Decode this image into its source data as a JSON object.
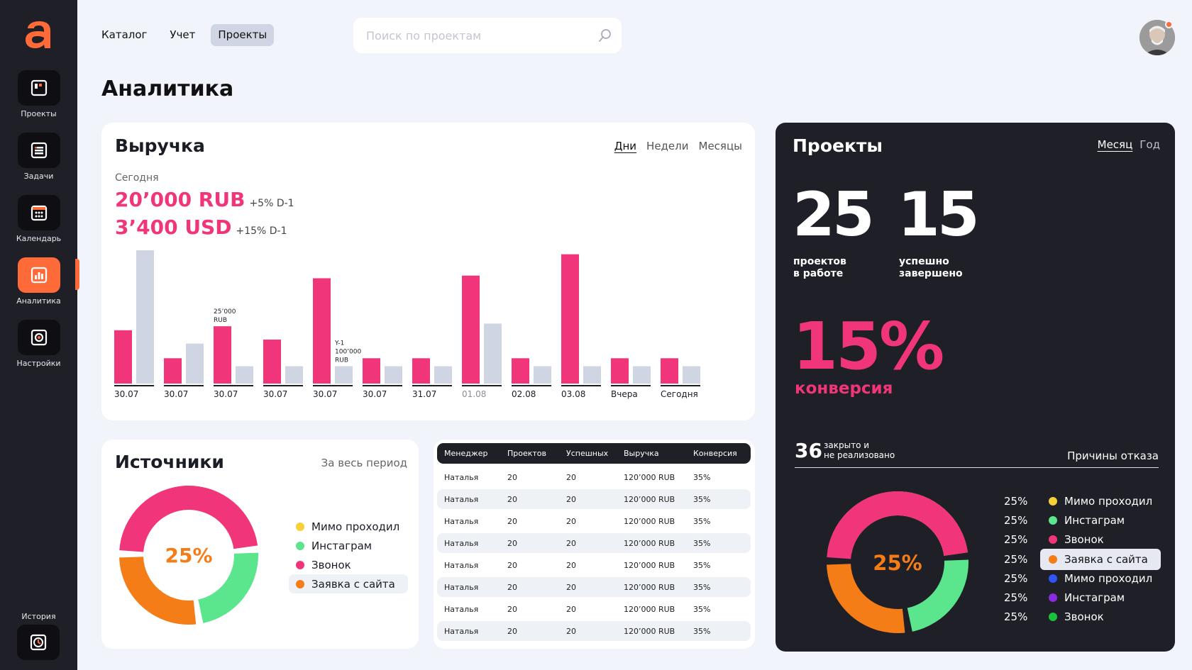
{
  "sidebar": {
    "logo": "a",
    "items": [
      {
        "label": "Проекты",
        "icon": "projects-icon"
      },
      {
        "label": "Задачи",
        "icon": "tasks-icon"
      },
      {
        "label": "Календарь",
        "icon": "calendar-icon"
      },
      {
        "label": "Аналитика",
        "icon": "analytics-icon",
        "active": true
      },
      {
        "label": "Настройки",
        "icon": "settings-icon"
      }
    ],
    "history_label": "История",
    "accent_color": "#ff6b38"
  },
  "topnav": {
    "tabs": [
      "Каталог",
      "Учет",
      "Проекты"
    ],
    "active_tab": "Проекты"
  },
  "search": {
    "placeholder": "Поиск по проектам",
    "value": ""
  },
  "page_title": "Аналитика",
  "revenue": {
    "title": "Выручка",
    "period_tabs": [
      "Дни",
      "Недели",
      "Месяцы"
    ],
    "active_period": "Дни",
    "today_label": "Сегодня",
    "amount_rub": "20’000 RUB",
    "change_rub": "+5% D-1",
    "amount_usd": "3’400 USD",
    "change_usd": "+15% D-1"
  },
  "chart_data": {
    "type": "bar",
    "title": "Выручка",
    "categories": [
      "30.07",
      "30.07",
      "30.07",
      "30.07",
      "30.07",
      "30.07",
      "31.07",
      "01.08",
      "02.08",
      "03.08",
      "Вчера",
      "Сегодня"
    ],
    "series": [
      {
        "values": [
          0.4,
          0.19,
          0.43,
          0.33,
          0.79,
          0.19,
          0.19,
          0.81,
          0.19,
          0.97,
          0.19,
          0.19
        ],
        "color": "#f0357b"
      },
      {
        "values": [
          1.0,
          0.3,
          0.13,
          0.13,
          0.13,
          0.13,
          0.13,
          0.45,
          0.13,
          0.13,
          0.13,
          0.13
        ],
        "color": "#cfd5e2"
      }
    ],
    "annotations": [
      {
        "category_index": 2,
        "text": "25’000\nRUB"
      },
      {
        "category_index": 4,
        "text": "Y-1\n100’000\nRUB"
      }
    ],
    "muted_category_index": 7,
    "ylim": [
      0,
      1
    ],
    "grid": false
  },
  "sources": {
    "title": "Источники",
    "period": "За весь период",
    "center": "25%",
    "items": [
      {
        "label": "Мимо проходил",
        "color": "#f7cf36"
      },
      {
        "label": "Инстаграм",
        "color": "#5be58c"
      },
      {
        "label": "Звонок",
        "color": "#f0357b"
      },
      {
        "label": "Заявка с сайта",
        "color": "#f57d17",
        "selected": true
      }
    ]
  },
  "table": {
    "headers": [
      "Менеджер",
      "Проектов",
      "Успешных",
      "Выручка",
      "Конверсия"
    ],
    "rows": [
      [
        "Наталья",
        "20",
        "20",
        "120’000 RUB",
        "35%"
      ],
      [
        "Наталья",
        "20",
        "20",
        "120’000 RUB",
        "35%"
      ],
      [
        "Наталья",
        "20",
        "20",
        "120’000 RUB",
        "35%"
      ],
      [
        "Наталья",
        "20",
        "20",
        "120’000 RUB",
        "35%"
      ],
      [
        "Наталья",
        "20",
        "20",
        "120’000 RUB",
        "35%"
      ],
      [
        "Наталья",
        "20",
        "20",
        "120’000 RUB",
        "35%"
      ],
      [
        "Наталья",
        "20",
        "20",
        "120’000 RUB",
        "35%"
      ],
      [
        "Наталья",
        "20",
        "20",
        "120’000 RUB",
        "35%"
      ]
    ]
  },
  "projects": {
    "title": "Проекты",
    "tabs": [
      "Месяц",
      "Год"
    ],
    "active_tab": "Месяц",
    "in_work": {
      "value": "25",
      "label": "проектов\nв работе"
    },
    "done": {
      "value": "15",
      "label": "успешно\nзавершено"
    },
    "conversion": {
      "value": "15%",
      "label": "конверсия"
    },
    "closed": {
      "value": "36",
      "label": "закрыто и\nне реализовано"
    },
    "reasons_label": "Причины отказа",
    "center": "25%",
    "reasons": [
      {
        "pct": "25%",
        "label": "Мимо проходил",
        "color": "#f7cf36"
      },
      {
        "pct": "25%",
        "label": "Инстаграм",
        "color": "#5be58c"
      },
      {
        "pct": "25%",
        "label": "Звонок",
        "color": "#f0357b"
      },
      {
        "pct": "25%",
        "label": "Заявка с сайта",
        "color": "#f57d17",
        "selected": true
      },
      {
        "pct": "25%",
        "label": "Мимо проходил",
        "color": "#2f55f2"
      },
      {
        "pct": "25%",
        "label": "Инстаграм",
        "color": "#8a2be2"
      },
      {
        "pct": "25%",
        "label": "Звонок",
        "color": "#19c23a"
      }
    ]
  }
}
